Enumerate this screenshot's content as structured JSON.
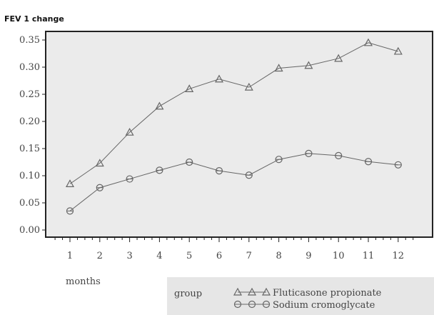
{
  "chart_data": {
    "type": "line",
    "ylabel": "FEV 1 change",
    "xlabel": "months",
    "categories": [
      "1",
      "2",
      "3",
      "4",
      "5",
      "6",
      "7",
      "8",
      "9",
      "10",
      "11",
      "12"
    ],
    "x": [
      1,
      2,
      3,
      4,
      5,
      6,
      7,
      8,
      9,
      10,
      11,
      12
    ],
    "ylim": [
      0.0,
      0.36
    ],
    "yticks": [
      "0.00",
      "0.05",
      "0.10",
      "0.15",
      "0.20",
      "0.25",
      "0.30",
      "0.35"
    ],
    "grid": false,
    "legend": {
      "title": "group",
      "placement": "bottom-right"
    },
    "series": [
      {
        "name": "Fluticasone propionate",
        "marker": "triangle",
        "values": [
          0.085,
          0.123,
          0.18,
          0.228,
          0.26,
          0.278,
          0.263,
          0.298,
          0.303,
          0.316,
          0.345,
          0.329
        ]
      },
      {
        "name": "Sodium cromoglycate",
        "marker": "circle",
        "values": [
          0.035,
          0.078,
          0.094,
          0.11,
          0.125,
          0.109,
          0.101,
          0.13,
          0.141,
          0.137,
          0.126,
          0.12
        ]
      }
    ],
    "colors": {
      "plot_bg": "#ebebeb",
      "line": "#666666",
      "axis": "#222222",
      "legend_bg": "#e6e6e6"
    }
  }
}
